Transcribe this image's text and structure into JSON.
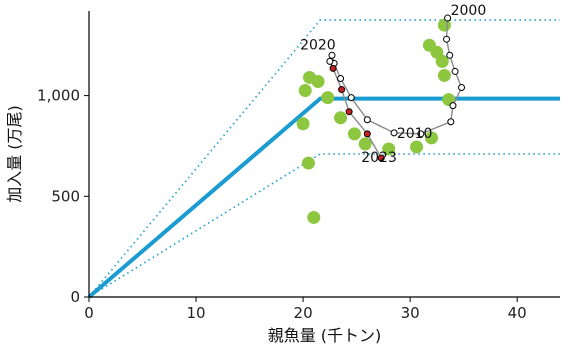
{
  "chart_data": {
    "type": "scatter",
    "xlabel": "親魚量 (千トン)",
    "ylabel": "加入量 (万尾)",
    "xlim": [
      0,
      44
    ],
    "ylim": [
      0,
      1420
    ],
    "xticks": [
      0,
      10,
      20,
      30,
      40
    ],
    "yticks": [
      0,
      500,
      1000
    ],
    "ytick_labels": [
      "0",
      "500",
      "1,000"
    ],
    "grid": false,
    "colors": {
      "stock_recruit_line": "#1a9bd1",
      "observed_points": "#8dc63f",
      "recent_points": "#cc1f1f",
      "path_points": "#ffffff",
      "path_line": "#8a8a8a"
    },
    "stock_recruitment_line": {
      "x": [
        0,
        21.6,
        44
      ],
      "y": [
        0,
        985,
        985
      ]
    },
    "upper_bound_line": {
      "x": [
        0,
        21.6,
        44
      ],
      "y": [
        0,
        1375,
        1375
      ]
    },
    "lower_bound_line": {
      "x": [
        0,
        21.6,
        44
      ],
      "y": [
        0,
        710,
        710
      ]
    },
    "observed_points": [
      {
        "x": 20.2,
        "y": 1025
      },
      {
        "x": 20.6,
        "y": 1090
      },
      {
        "x": 21.4,
        "y": 1070
      },
      {
        "x": 22.3,
        "y": 990
      },
      {
        "x": 20.0,
        "y": 860
      },
      {
        "x": 20.5,
        "y": 665
      },
      {
        "x": 21.0,
        "y": 395
      },
      {
        "x": 23.5,
        "y": 890
      },
      {
        "x": 24.8,
        "y": 810
      },
      {
        "x": 25.8,
        "y": 760
      },
      {
        "x": 28.0,
        "y": 735
      },
      {
        "x": 30.6,
        "y": 745
      },
      {
        "x": 32.0,
        "y": 790
      },
      {
        "x": 31.8,
        "y": 1250
      },
      {
        "x": 32.5,
        "y": 1215
      },
      {
        "x": 33.0,
        "y": 1170
      },
      {
        "x": 33.2,
        "y": 1100
      },
      {
        "x": 33.6,
        "y": 980
      },
      {
        "x": 33.2,
        "y": 1350
      }
    ],
    "time_series_path": [
      {
        "year": 2000,
        "x": 33.5,
        "y": 1385
      },
      {
        "x": 33.4,
        "y": 1280
      },
      {
        "x": 33.7,
        "y": 1200
      },
      {
        "x": 34.2,
        "y": 1120
      },
      {
        "x": 34.8,
        "y": 1040
      },
      {
        "x": 34.0,
        "y": 950
      },
      {
        "x": 33.8,
        "y": 870
      },
      {
        "year": 2010,
        "x": 31.0,
        "y": 810
      },
      {
        "x": 28.5,
        "y": 815
      },
      {
        "x": 26.0,
        "y": 880
      },
      {
        "x": 24.5,
        "y": 990
      },
      {
        "x": 23.5,
        "y": 1085
      },
      {
        "x": 22.9,
        "y": 1160
      },
      {
        "x": 22.7,
        "y": 1200
      },
      {
        "x": 22.5,
        "y": 1170
      },
      {
        "year": 2020,
        "x": 22.8,
        "y": 1135,
        "recent": true
      },
      {
        "x": 23.6,
        "y": 1030,
        "recent": true
      },
      {
        "x": 24.3,
        "y": 920,
        "recent": true
      },
      {
        "x": 26.0,
        "y": 810,
        "recent": true
      },
      {
        "year": 2023,
        "x": 27.3,
        "y": 690,
        "recent": true
      }
    ],
    "year_labels": [
      {
        "text": "2000",
        "x": 33.5,
        "y": 1385
      },
      {
        "text": "2010",
        "x": 31.0,
        "y": 810
      },
      {
        "text": "2020",
        "x": 22.8,
        "y": 1135
      },
      {
        "text": "2023",
        "x": 27.3,
        "y": 690
      }
    ]
  }
}
